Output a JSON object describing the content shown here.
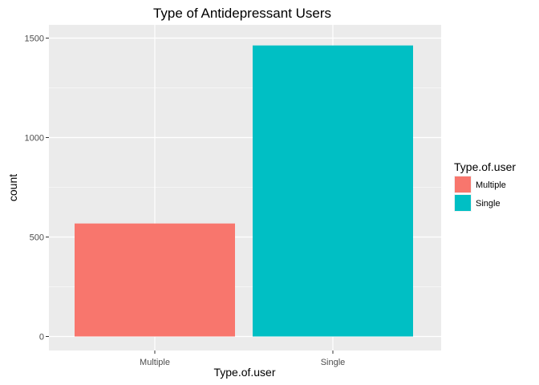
{
  "chart_data": {
    "type": "bar",
    "title": "Type of Antidepressant Users",
    "xlabel": "Type.of.user",
    "ylabel": "count",
    "categories": [
      "Multiple",
      "Single"
    ],
    "values": [
      568,
      1463
    ],
    "colors": [
      "#F8766D",
      "#00BFC4"
    ],
    "ylim": [
      0,
      1540
    ],
    "yticks": [
      0,
      500,
      1000,
      1500
    ],
    "ytick_labels": [
      "0",
      "500",
      "1000",
      "1500"
    ],
    "grid": true,
    "legend": {
      "title": "Type.of.user",
      "position": "right",
      "items": [
        "Multiple",
        "Single"
      ]
    },
    "panel_background": "#EBEBEB",
    "grid_color": "#FFFFFF"
  }
}
